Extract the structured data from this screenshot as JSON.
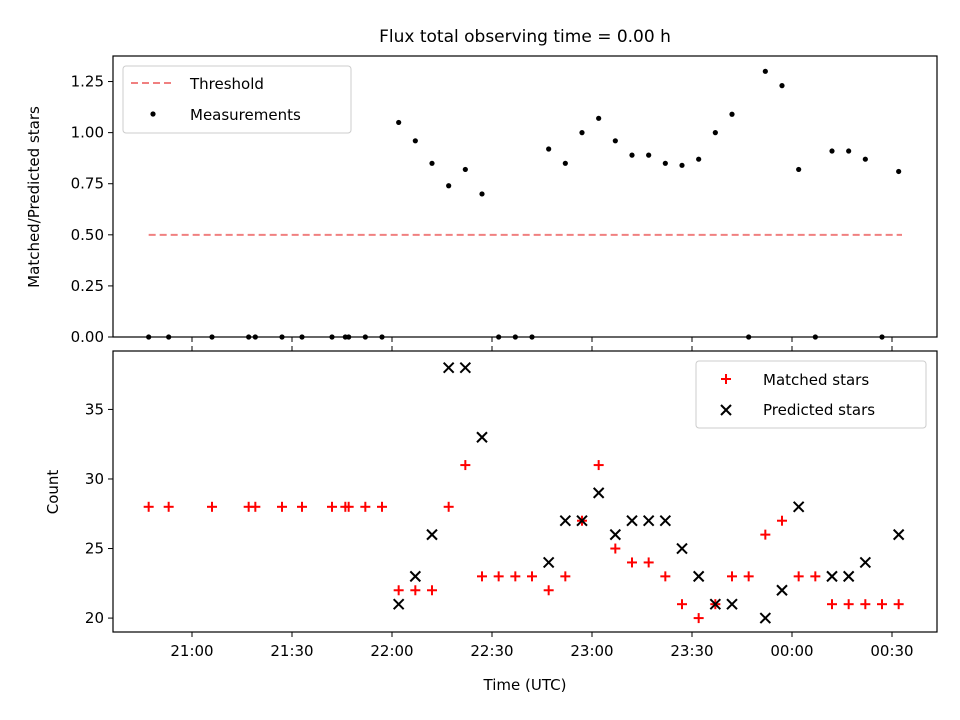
{
  "chart_data": [
    {
      "type": "scatter",
      "title": "Flux total observing time = 0.00 h",
      "xlabel": "",
      "ylabel": "Matched/Predicted stars",
      "ylim": [
        0,
        1.375
      ],
      "yticks": [
        "0.00",
        "0.25",
        "0.50",
        "0.75",
        "1.00",
        "1.25"
      ],
      "legend_position": "upper-left",
      "series": [
        {
          "name": "Threshold",
          "kind": "dashed-line",
          "color": "#f08080",
          "x": [
            "20:47",
            "00:33"
          ],
          "y": [
            0.5,
            0.5
          ]
        },
        {
          "name": "Measurements",
          "kind": "dots",
          "color": "#000000",
          "x": [
            "20:47",
            "20:53",
            "21:06",
            "21:17",
            "21:19",
            "21:27",
            "21:33",
            "21:42",
            "21:46",
            "21:47",
            "21:52",
            "21:57",
            "22:02",
            "22:07",
            "22:12",
            "22:17",
            "22:22",
            "22:27",
            "22:32",
            "22:37",
            "22:42",
            "22:47",
            "22:52",
            "22:57",
            "23:02",
            "23:07",
            "23:12",
            "23:17",
            "23:22",
            "23:27",
            "23:32",
            "23:37",
            "23:42",
            "23:47",
            "23:52",
            "23:57",
            "00:02",
            "00:07",
            "00:12",
            "00:17",
            "00:22",
            "00:27",
            "00:32"
          ],
          "y": [
            0,
            0,
            0,
            0,
            0,
            0,
            0,
            0,
            0,
            0,
            0,
            0,
            1.05,
            0.96,
            0.85,
            0.74,
            0.82,
            0.7,
            0,
            0,
            0,
            0.92,
            0.85,
            1.0,
            1.07,
            0.96,
            0.89,
            0.89,
            0.85,
            0.84,
            0.87,
            1.0,
            1.09,
            0,
            1.3,
            1.23,
            0.82,
            0,
            0.91,
            0.91,
            0.87,
            0,
            0.81
          ]
        }
      ]
    },
    {
      "type": "scatter",
      "title": "",
      "xlabel": "Time (UTC)",
      "ylabel": "Count",
      "ylim": [
        19,
        39.2
      ],
      "yticks": [
        "20",
        "25",
        "30",
        "35"
      ],
      "xticks": [
        "21:00",
        "21:30",
        "22:00",
        "22:30",
        "23:00",
        "23:30",
        "00:00",
        "00:30"
      ],
      "legend_position": "upper-right",
      "series": [
        {
          "name": "Matched stars",
          "marker": "plus",
          "color": "#ff0000",
          "x": [
            "20:47",
            "20:53",
            "21:06",
            "21:17",
            "21:19",
            "21:27",
            "21:33",
            "21:42",
            "21:46",
            "21:47",
            "21:52",
            "21:57",
            "22:02",
            "22:07",
            "22:12",
            "22:17",
            "22:22",
            "22:27",
            "22:32",
            "22:37",
            "22:42",
            "22:47",
            "22:52",
            "22:57",
            "23:02",
            "23:07",
            "23:12",
            "23:17",
            "23:22",
            "23:27",
            "23:32",
            "23:37",
            "23:42",
            "23:47",
            "23:52",
            "23:57",
            "00:02",
            "00:07",
            "00:12",
            "00:17",
            "00:22",
            "00:27",
            "00:32"
          ],
          "y": [
            28,
            28,
            28,
            28,
            28,
            28,
            28,
            28,
            28,
            28,
            28,
            28,
            22,
            22,
            22,
            28,
            31,
            23,
            23,
            23,
            23,
            22,
            23,
            27,
            31,
            25,
            24,
            24,
            23,
            21,
            20,
            21,
            23,
            23,
            26,
            27,
            23,
            23,
            21,
            21,
            21,
            21,
            21
          ]
        },
        {
          "name": "Predicted stars",
          "marker": "x",
          "color": "#000000",
          "x": [
            "22:02",
            "22:07",
            "22:12",
            "22:17",
            "22:22",
            "22:27",
            "22:47",
            "22:52",
            "22:57",
            "23:02",
            "23:07",
            "23:12",
            "23:17",
            "23:22",
            "23:27",
            "23:32",
            "23:37",
            "23:42",
            "23:52",
            "23:57",
            "00:02",
            "00:12",
            "00:17",
            "00:22",
            "00:32"
          ],
          "y": [
            21,
            23,
            26,
            38,
            38,
            33,
            24,
            27,
            27,
            29,
            26,
            27,
            27,
            27,
            25,
            23,
            21,
            21,
            20,
            22,
            28,
            23,
            23,
            24,
            26
          ]
        }
      ]
    }
  ]
}
